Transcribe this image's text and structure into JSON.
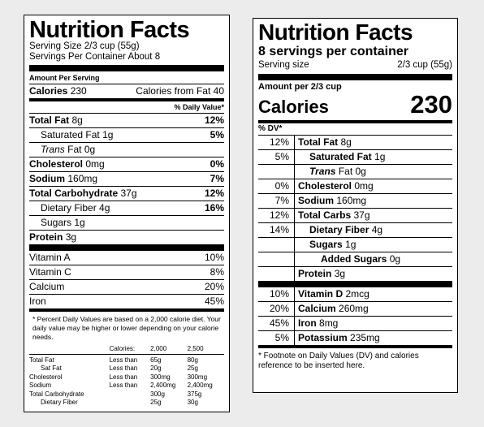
{
  "left": {
    "title": "Nutrition Facts",
    "serving_size": "Serving Size 2/3 cup (55g)",
    "servings_per_container": "Servings Per Container About 8",
    "amount_per_serving": "Amount Per Serving",
    "calories_label": "Calories",
    "calories_value": "230",
    "calories_from_fat": "Calories from Fat 40",
    "dv_header": "% Daily Value*",
    "nutrients": [
      {
        "name": "Total Fat",
        "amount": "8g",
        "dv": "12%"
      },
      {
        "name": "Saturated Fat",
        "amount": "1g",
        "dv": "5%"
      },
      {
        "name": "Trans",
        "amount": "Fat 0g",
        "dv": ""
      },
      {
        "name": "Cholesterol",
        "amount": "0mg",
        "dv": "0%"
      },
      {
        "name": "Sodium",
        "amount": "160mg",
        "dv": "7%"
      },
      {
        "name": "Total Carbohydrate",
        "amount": "37g",
        "dv": "12%"
      },
      {
        "name": "Dietary Fiber",
        "amount": "4g",
        "dv": "16%"
      },
      {
        "name": "Sugars",
        "amount": "1g",
        "dv": ""
      },
      {
        "name": "Protein",
        "amount": "3g",
        "dv": ""
      }
    ],
    "vitamins": [
      {
        "name": "Vitamin A",
        "dv": "10%"
      },
      {
        "name": "Vitamin C",
        "dv": "8%"
      },
      {
        "name": "Calcium",
        "dv": "20%"
      },
      {
        "name": "Iron",
        "dv": "45%"
      }
    ],
    "footnote": "* Percent Daily Values are based on a 2,000 calorie diet. Your daily value may be higher or lower depending on your calorie needs.",
    "ftable": {
      "header": [
        "",
        "Calories:",
        "2,000",
        "2,500"
      ],
      "rows": [
        [
          "Total Fat",
          "Less than",
          "65g",
          "80g"
        ],
        [
          "Sat Fat",
          "Less than",
          "20g",
          "25g"
        ],
        [
          "Cholesterol",
          "Less than",
          "300mg",
          "300mg"
        ],
        [
          "Sodium",
          "Less than",
          "2,400mg",
          "2,400mg"
        ],
        [
          "Total Carbohydrate",
          "",
          "300g",
          "375g"
        ],
        [
          "Dietary Fiber",
          "",
          "25g",
          "30g"
        ]
      ]
    }
  },
  "right": {
    "title": "Nutrition Facts",
    "servings_per_container": "8 servings per container",
    "serving_size_label": "Serving size",
    "serving_size_value": "2/3 cup (55g)",
    "amount_per": "Amount per 2/3 cup",
    "calories_label": "Calories",
    "calories_value": "230",
    "dv_header": "% DV*",
    "nutrients": [
      {
        "dv": "12%",
        "name": "Total Fat",
        "amount": "8g"
      },
      {
        "dv": "5%",
        "name": "Saturated Fat",
        "amount": "1g"
      },
      {
        "dv": "",
        "name": "Trans",
        "amount": "Fat 0g"
      },
      {
        "dv": "0%",
        "name": "Cholesterol",
        "amount": "0mg"
      },
      {
        "dv": "7%",
        "name": "Sodium",
        "amount": "160mg"
      },
      {
        "dv": "12%",
        "name": "Total Carbs",
        "amount": "37g"
      },
      {
        "dv": "14%",
        "name": "Dietary Fiber",
        "amount": "4g"
      },
      {
        "dv": "",
        "name": "Sugars",
        "amount": "1g"
      },
      {
        "dv": "",
        "name": "Added Sugars",
        "amount": "0g"
      },
      {
        "dv": "",
        "name": "Protein",
        "amount": "3g"
      }
    ],
    "vitamins": [
      {
        "dv": "10%",
        "name": "Vitamin D",
        "amount": "2mcg"
      },
      {
        "dv": "20%",
        "name": "Calcium",
        "amount": "260mg"
      },
      {
        "dv": "45%",
        "name": "Iron",
        "amount": "8mg"
      },
      {
        "dv": "5%",
        "name": "Potassium",
        "amount": "235mg"
      }
    ],
    "footnote": "* Footnote on Daily Values (DV) and calories reference to be inserted here."
  }
}
